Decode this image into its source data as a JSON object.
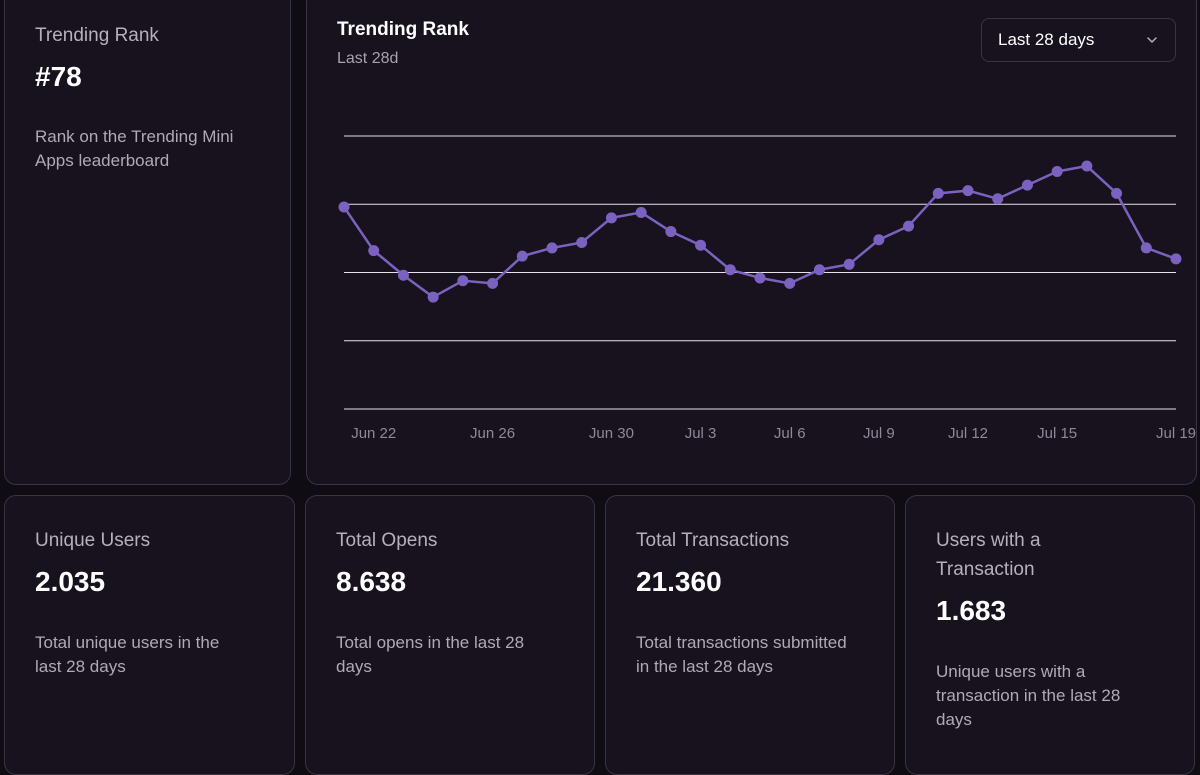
{
  "rank_card": {
    "title": "Trending Rank",
    "value": "#78",
    "description_line1": "Rank on the Trending Mini",
    "description_line2": "Apps leaderboard"
  },
  "chart_card": {
    "title": "Trending Rank",
    "subtitle": "Last 28d",
    "range_select": {
      "selected": "Last 28 days",
      "icon": "chevron-down-icon"
    }
  },
  "chart_data": {
    "type": "line",
    "title": "Trending Rank",
    "subtitle": "Last 28d",
    "color": "#7c62c0",
    "grid": true,
    "gridline_count": 5,
    "x_tick_labels": [
      "Jun 22",
      "Jun 26",
      "Jun 30",
      "Jul 3",
      "Jul 6",
      "Jul 9",
      "Jul 12",
      "Jul 15",
      "Jul 19"
    ],
    "x": [
      "Jun 21",
      "Jun 22",
      "Jun 23",
      "Jun 24",
      "Jun 25",
      "Jun 26",
      "Jun 27",
      "Jun 28",
      "Jun 29",
      "Jun 30",
      "Jul 1",
      "Jul 2",
      "Jul 3",
      "Jul 4",
      "Jul 5",
      "Jul 6",
      "Jul 7",
      "Jul 8",
      "Jul 9",
      "Jul 10",
      "Jul 11",
      "Jul 12",
      "Jul 13",
      "Jul 14",
      "Jul 15",
      "Jul 16",
      "Jul 17",
      "Jul 18",
      "Jul 19"
    ],
    "values": [
      0.74,
      0.58,
      0.49,
      0.41,
      0.47,
      0.46,
      0.56,
      0.59,
      0.61,
      0.7,
      0.72,
      0.65,
      0.6,
      0.51,
      0.48,
      0.46,
      0.51,
      0.53,
      0.62,
      0.67,
      0.79,
      0.8,
      0.77,
      0.82,
      0.87,
      0.89,
      0.79,
      0.59,
      0.55
    ],
    "ylim": [
      0,
      1
    ]
  },
  "stats": [
    {
      "title_line1": "Unique Users",
      "title_line2": "",
      "value": "2.035",
      "desc_line1": "Total unique users in the",
      "desc_line2": "last 28 days",
      "desc_line3": ""
    },
    {
      "title_line1": "Total Opens",
      "title_line2": "",
      "value": "8.638",
      "desc_line1": "Total opens in the last 28",
      "desc_line2": "days",
      "desc_line3": ""
    },
    {
      "title_line1": "Total Transactions",
      "title_line2": "",
      "value": "21.360",
      "desc_line1": "Total transactions submitted",
      "desc_line2": "in the last 28 days",
      "desc_line3": ""
    },
    {
      "title_line1": "Users with a",
      "title_line2": "Transaction",
      "value": "1.683",
      "desc_line1": "Unique users with a",
      "desc_line2": "transaction in the last 28",
      "desc_line3": "days"
    }
  ]
}
